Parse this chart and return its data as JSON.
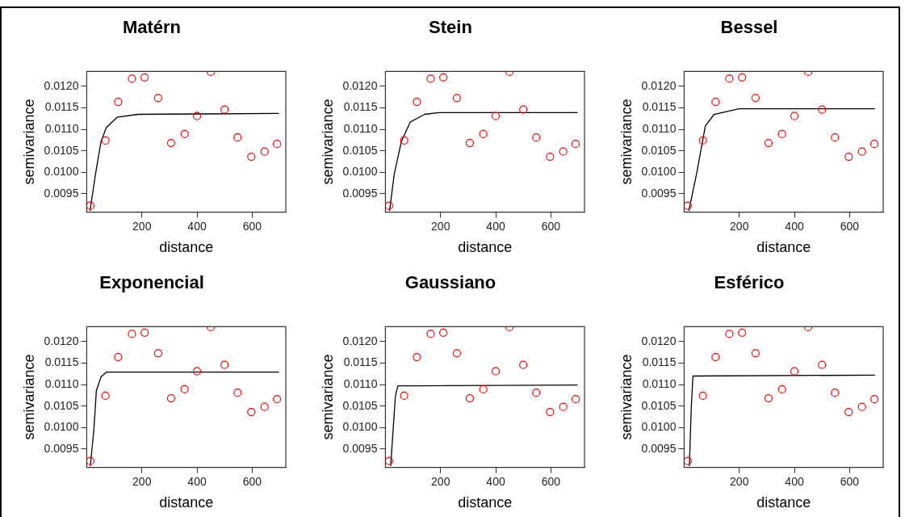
{
  "chart_data": [
    {
      "type": "scatter",
      "title": "Matérn",
      "xlabel": "distance",
      "ylabel": "semivariance",
      "xlim": [
        0,
        722
      ],
      "ylim": [
        0.00907,
        0.01235
      ],
      "xticks": [
        200,
        400,
        600
      ],
      "yticks": [
        0.0095,
        {
          "value": 0.01,
          "label": "0.0100"
        },
        0.0105,
        {
          "value": 0.011,
          "label": "0.0110"
        },
        0.0115,
        {
          "value": 0.012,
          "label": "0.0120"
        }
      ],
      "grid": false,
      "legend": false,
      "series": [
        {
          "type": "scatter",
          "color": "#ff0000",
          "marker": "circle",
          "x": [
            13,
            68,
            114,
            164,
            210,
            259,
            306,
            355,
            400,
            450,
            500,
            547,
            597,
            645,
            690
          ],
          "values": [
            0.00922,
            0.01074,
            0.01164,
            0.01218,
            0.01221,
            0.01173,
            0.01068,
            0.01089,
            0.01131,
            0.01234,
            0.01146,
            0.01081,
            0.01036,
            0.01048,
            0.01066
          ]
        },
        {
          "type": "line",
          "color": "#000000",
          "marker": "none",
          "x": [
            12,
            32,
            52,
            71,
            110,
            187,
            697
          ],
          "values": [
            0.0091,
            0.00996,
            0.01072,
            0.01104,
            0.01128,
            0.01135,
            0.01137
          ]
        }
      ]
    },
    {
      "type": "scatter",
      "title": "Stein",
      "xlabel": "distance",
      "ylabel": "semivariance",
      "xlim": [
        0,
        722
      ],
      "ylim": [
        0.00907,
        0.01235
      ],
      "xticks": [
        200,
        400,
        600
      ],
      "yticks": [
        0.0095,
        {
          "value": 0.01,
          "label": "0.0100"
        },
        0.0105,
        {
          "value": 0.011,
          "label": "0.0110"
        },
        0.0115,
        {
          "value": 0.012,
          "label": "0.0120"
        }
      ],
      "grid": false,
      "legend": false,
      "series": [
        {
          "type": "scatter",
          "color": "#ff0000",
          "marker": "circle",
          "x": [
            13,
            68,
            114,
            164,
            210,
            259,
            306,
            355,
            400,
            450,
            500,
            547,
            597,
            645,
            690
          ],
          "values": [
            0.00922,
            0.01074,
            0.01164,
            0.01218,
            0.01221,
            0.01173,
            0.01068,
            0.01089,
            0.01131,
            0.01234,
            0.01146,
            0.01081,
            0.01036,
            0.01048,
            0.01066
          ]
        },
        {
          "type": "line",
          "color": "#000000",
          "marker": "none",
          "x": [
            15,
            32,
            58,
            90,
            142,
            194,
            697
          ],
          "values": [
            0.0091,
            0.00996,
            0.01072,
            0.01117,
            0.01135,
            0.01139,
            0.01139
          ]
        }
      ]
    },
    {
      "type": "scatter",
      "title": "Bessel",
      "xlabel": "distance",
      "ylabel": "semivariance",
      "xlim": [
        0,
        722
      ],
      "ylim": [
        0.00907,
        0.01235
      ],
      "xticks": [
        200,
        400,
        600
      ],
      "yticks": [
        0.0095,
        {
          "value": 0.01,
          "label": "0.0100"
        },
        0.0105,
        {
          "value": 0.011,
          "label": "0.0110"
        },
        0.0115,
        {
          "value": 0.012,
          "label": "0.0120"
        }
      ],
      "grid": false,
      "legend": false,
      "series": [
        {
          "type": "scatter",
          "color": "#ff0000",
          "marker": "circle",
          "x": [
            13,
            68,
            114,
            164,
            210,
            259,
            306,
            355,
            400,
            450,
            500,
            547,
            597,
            645,
            690
          ],
          "values": [
            0.00922,
            0.01074,
            0.01164,
            0.01218,
            0.01221,
            0.01173,
            0.01068,
            0.01089,
            0.01131,
            0.01234,
            0.01146,
            0.01081,
            0.01036,
            0.01048,
            0.01066
          ]
        },
        {
          "type": "line",
          "color": "#000000",
          "marker": "none",
          "x": [
            17,
            45,
            77,
            109,
            199,
            692
          ],
          "values": [
            0.0091,
            0.00996,
            0.01108,
            0.01135,
            0.01148,
            0.01148
          ]
        }
      ]
    },
    {
      "type": "scatter",
      "title": "Exponencial",
      "xlabel": "distance",
      "ylabel": "semivariance",
      "xlim": [
        0,
        722
      ],
      "ylim": [
        0.00907,
        0.01235
      ],
      "xticks": [
        200,
        400,
        600
      ],
      "yticks": [
        0.0095,
        {
          "value": 0.01,
          "label": "0.0100"
        },
        0.0105,
        {
          "value": 0.011,
          "label": "0.0110"
        },
        0.0115,
        {
          "value": 0.012,
          "label": "0.0120"
        }
      ],
      "grid": false,
      "legend": false,
      "series": [
        {
          "type": "scatter",
          "color": "#ff0000",
          "marker": "circle",
          "x": [
            13,
            68,
            114,
            164,
            210,
            259,
            306,
            355,
            400,
            450,
            500,
            547,
            597,
            645,
            690
          ],
          "values": [
            0.00922,
            0.01074,
            0.01164,
            0.01218,
            0.01221,
            0.01173,
            0.01068,
            0.01089,
            0.01131,
            0.01234,
            0.01146,
            0.01081,
            0.01036,
            0.01048,
            0.01066
          ]
        },
        {
          "type": "line",
          "color": "#000000",
          "marker": "none",
          "x": [
            13,
            26,
            35,
            52,
            71,
            697
          ],
          "values": [
            0.0091,
            0.00995,
            0.01086,
            0.01118,
            0.01129,
            0.01129
          ]
        }
      ]
    },
    {
      "type": "scatter",
      "title": "Gaussiano",
      "xlabel": "distance",
      "ylabel": "semivariance",
      "xlim": [
        0,
        722
      ],
      "ylim": [
        0.00907,
        0.01235
      ],
      "xticks": [
        200,
        400,
        600
      ],
      "yticks": [
        0.0095,
        {
          "value": 0.01,
          "label": "0.0100"
        },
        0.0105,
        {
          "value": 0.011,
          "label": "0.0110"
        },
        0.0115,
        {
          "value": 0.012,
          "label": "0.0120"
        }
      ],
      "grid": false,
      "legend": false,
      "series": [
        {
          "type": "scatter",
          "color": "#ff0000",
          "marker": "circle",
          "x": [
            13,
            68,
            114,
            164,
            210,
            259,
            306,
            355,
            400,
            450,
            500,
            547,
            597,
            645,
            690
          ],
          "values": [
            0.00922,
            0.01074,
            0.01164,
            0.01218,
            0.01221,
            0.01173,
            0.01068,
            0.01089,
            0.01131,
            0.01234,
            0.01146,
            0.01081,
            0.01036,
            0.01048,
            0.01066
          ]
        },
        {
          "type": "line",
          "color": "#000000",
          "marker": "none",
          "x": [
            19,
            28,
            36,
            45,
            697
          ],
          "values": [
            0.0091,
            0.00995,
            0.01072,
            0.01097,
            0.01099
          ]
        }
      ]
    },
    {
      "type": "scatter",
      "title": "Esférico",
      "xlabel": "distance",
      "ylabel": "semivariance",
      "xlim": [
        0,
        722
      ],
      "ylim": [
        0.00907,
        0.01235
      ],
      "xticks": [
        200,
        400,
        600
      ],
      "yticks": [
        0.0095,
        {
          "value": 0.01,
          "label": "0.0100"
        },
        0.0105,
        {
          "value": 0.011,
          "label": "0.0110"
        },
        0.0115,
        {
          "value": 0.012,
          "label": "0.0120"
        }
      ],
      "grid": false,
      "legend": false,
      "series": [
        {
          "type": "scatter",
          "color": "#ff0000",
          "marker": "circle",
          "x": [
            13,
            68,
            114,
            164,
            210,
            259,
            306,
            355,
            400,
            450,
            500,
            547,
            597,
            645,
            690
          ],
          "values": [
            0.00922,
            0.01074,
            0.01164,
            0.01218,
            0.01221,
            0.01173,
            0.01068,
            0.01089,
            0.01131,
            0.01234,
            0.01146,
            0.01081,
            0.01036,
            0.01048,
            0.01066
          ]
        },
        {
          "type": "line",
          "color": "#000000",
          "marker": "none",
          "x": [
            19,
            26,
            32,
            692
          ],
          "values": [
            0.0091,
            0.01048,
            0.0112,
            0.01122
          ]
        }
      ]
    }
  ]
}
